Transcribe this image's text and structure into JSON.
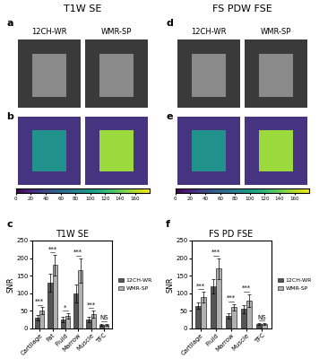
{
  "columns": [
    {
      "header": "T1W SE",
      "image_panels": [
        {
          "letter": "a",
          "labels": [
            "12CH-WR",
            "WMR-SP"
          ]
        },
        {
          "letter": "b",
          "colorbar_lim": [
            0,
            180
          ],
          "colorbar_ticks": [
            0,
            20,
            40,
            60,
            80,
            100,
            120,
            140,
            160
          ]
        }
      ]
    },
    {
      "header": "FS PDW FSE",
      "image_panels": [
        {
          "letter": "d",
          "labels": [
            "12CH-WR",
            "WMR-SP"
          ]
        },
        {
          "letter": "e",
          "colorbar_lim": [
            0,
            180
          ],
          "colorbar_ticks": [
            0,
            20,
            40,
            60,
            80,
            100,
            120,
            140,
            160
          ]
        }
      ]
    }
  ],
  "chart_data": [
    {
      "type": "bar",
      "letter": "c",
      "title": "T1W SE",
      "y_label": "SNR",
      "categories": [
        "Cartilage",
        "Fat",
        "Fluid",
        "Marrow",
        "Muscle",
        "TFC"
      ],
      "series": [
        {
          "name": "12CH-WR",
          "color": "#555555",
          "values": [
            30,
            130,
            25,
            100,
            25,
            10
          ],
          "errors": [
            8,
            25,
            7,
            25,
            7,
            3
          ]
        },
        {
          "name": "WMR-SP",
          "color": "#b0b0b0",
          "values": [
            50,
            180,
            35,
            165,
            40,
            10
          ],
          "errors": [
            10,
            30,
            8,
            35,
            10,
            3
          ]
        }
      ],
      "significance": [
        "***",
        "***",
        "*",
        "***",
        "***",
        "NS"
      ],
      "ylim": [
        0,
        250
      ],
      "yticks": [
        0,
        50,
        100,
        150,
        200,
        250
      ],
      "legend": "right"
    },
    {
      "type": "bar",
      "letter": "f",
      "title": "FS PD FSE",
      "y_label": "SNR",
      "categories": [
        "Cartilage",
        "Fluid",
        "Marrow",
        "Muscle",
        "TFC"
      ],
      "series": [
        {
          "name": "12CH-WR",
          "color": "#555555",
          "values": [
            65,
            120,
            35,
            55,
            12
          ],
          "errors": [
            10,
            20,
            8,
            12,
            3
          ]
        },
        {
          "name": "WMR-SP",
          "color": "#b0b0b0",
          "values": [
            90,
            170,
            60,
            80,
            12
          ],
          "errors": [
            15,
            30,
            10,
            18,
            3
          ]
        }
      ],
      "significance": [
        "***",
        "***",
        "***",
        "***",
        "NS"
      ],
      "ylim": [
        0,
        250
      ],
      "yticks": [
        0,
        50,
        100,
        150,
        200,
        250
      ],
      "legend": "right"
    }
  ]
}
